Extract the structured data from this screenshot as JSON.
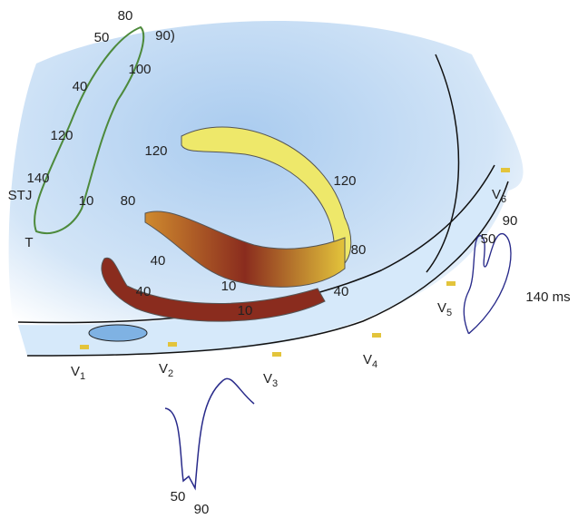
{
  "loop_labels": [
    "80",
    "50",
    "90)",
    "100",
    "40",
    "120",
    "140",
    "STJ",
    "10",
    "T"
  ],
  "map_labels": [
    "120",
    "120",
    "80",
    "80",
    "40",
    "40",
    "40",
    "10",
    "10"
  ],
  "leads": [
    {
      "letter": "V",
      "sub": "1"
    },
    {
      "letter": "V",
      "sub": "2"
    },
    {
      "letter": "V",
      "sub": "3"
    },
    {
      "letter": "V",
      "sub": "4"
    },
    {
      "letter": "V",
      "sub": "5"
    },
    {
      "letter": "V",
      "sub": "6"
    }
  ],
  "v6_trace_labels": [
    "90",
    "50",
    "140 ms"
  ],
  "v2_trace_labels": [
    "50",
    "90"
  ]
}
